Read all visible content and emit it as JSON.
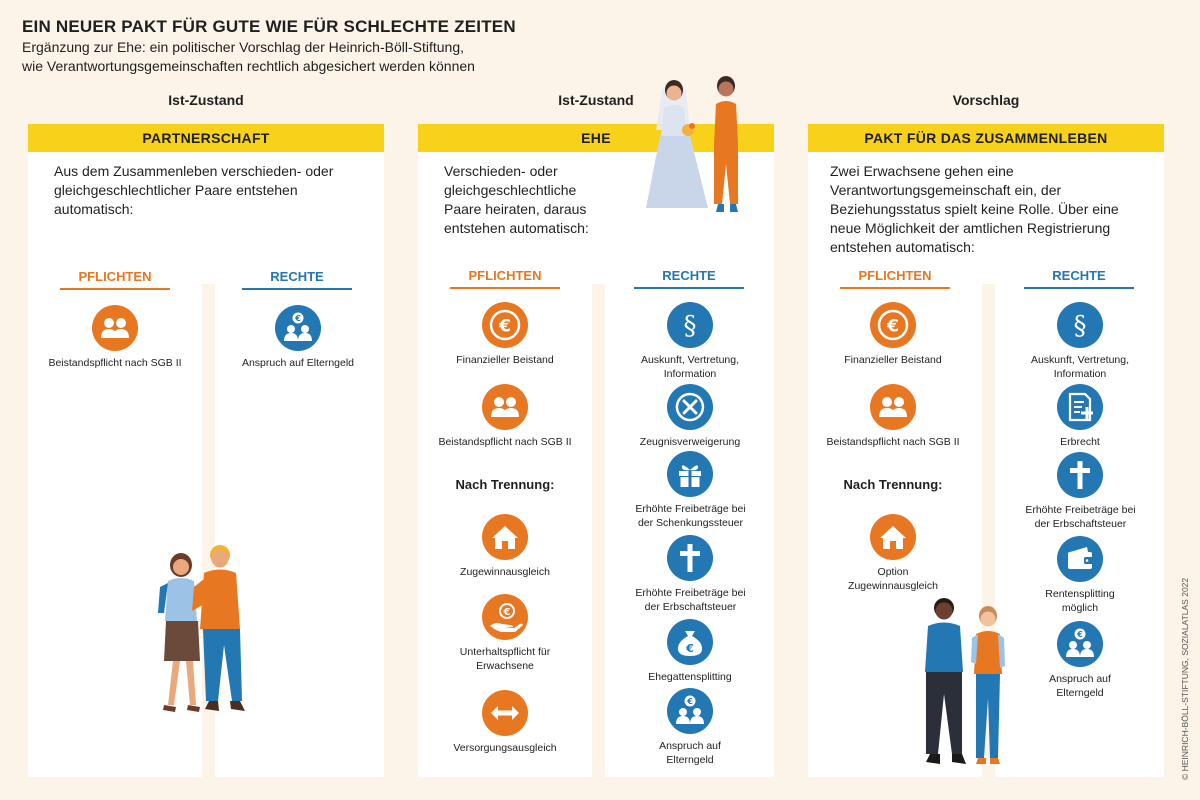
{
  "header": {
    "title": "EIN NEUER PAKT FÜR GUTE WIE FÜR SCHLECHTE ZEITEN",
    "subtitle_line1": "Ergänzung zur Ehe: ein politischer Vorschlag der Heinrich-Böll-Stiftung,",
    "subtitle_line2": "wie Verantwortungsgemeinschaften rechtlich abgesichert werden können"
  },
  "columns": [
    {
      "status": "Ist-Zustand",
      "banner": "PARTNERSCHAFT",
      "description": "Aus dem Zusammenleben verschieden- oder gleichgeschlechtlicher Paare entstehen automatisch:",
      "pflichten_label": "PFLICHTEN",
      "rechte_label": "RECHTE",
      "pflichten": [
        {
          "icon": "people-icon",
          "label": "Beistandspflicht nach SGB II"
        }
      ],
      "rechte": [
        {
          "icon": "family-euro-icon",
          "label": "Anspruch auf Elterngeld"
        }
      ]
    },
    {
      "status": "Ist-Zustand",
      "banner": "EHE",
      "description": "Verschieden- oder gleichgeschlechtliche Paare heiraten, daraus entstehen automatisch:",
      "pflichten_label": "PFLICHTEN",
      "rechte_label": "RECHTE",
      "nach_trennung": "Nach Trennung:",
      "pflichten": [
        {
          "icon": "euro-icon",
          "label": "Finanzieller Beistand"
        },
        {
          "icon": "people-icon",
          "label": "Beistandspflicht nach SGB II"
        },
        {
          "icon": "house-icon",
          "label": "Zugewinnausgleich"
        },
        {
          "icon": "hand-euro-icon",
          "label": "Unterhaltspflicht für Erwachsene"
        },
        {
          "icon": "double-arrow-icon",
          "label": "Versorgungsausgleich"
        }
      ],
      "rechte": [
        {
          "icon": "paragraph-icon",
          "label": "Auskunft, Vertretung, Information"
        },
        {
          "icon": "x-mark-icon",
          "label": "Zeugnisverweigerung"
        },
        {
          "icon": "gift-icon",
          "label": "Erhöhte Freibeträge bei der Schenkungssteuer"
        },
        {
          "icon": "cross-icon",
          "label": "Erhöhte Freibeträge bei der Erbschaftsteuer"
        },
        {
          "icon": "money-bag-icon",
          "label": "Ehegattensplitting"
        },
        {
          "icon": "family-euro-icon",
          "label": "Anspruch auf Elterngeld"
        }
      ]
    },
    {
      "status": "Vorschlag",
      "banner": "PAKT FÜR DAS ZUSAMMENLEBEN",
      "description": "Zwei Erwachsene gehen eine Verantwortungsgemeinschaft ein, der Beziehungsstatus spielt keine Rolle. Über eine neue Möglichkeit der amtlichen Registrierung entstehen automatisch:",
      "pflichten_label": "PFLICHTEN",
      "rechte_label": "RECHTE",
      "nach_trennung": "Nach Trennung:",
      "pflichten": [
        {
          "icon": "euro-icon",
          "label": "Finanzieller Beistand"
        },
        {
          "icon": "people-icon",
          "label": "Beistandspflicht nach SGB II"
        },
        {
          "icon": "house-icon",
          "label": "Option Zugewinnausgleich"
        }
      ],
      "rechte": [
        {
          "icon": "paragraph-icon",
          "label": "Auskunft, Vertretung, Information"
        },
        {
          "icon": "document-plus-icon",
          "label": "Erbrecht"
        },
        {
          "icon": "cross-icon",
          "label": "Erhöhte Freibeträge bei der Erbschaftsteuer"
        },
        {
          "icon": "wallet-icon",
          "label": "Rentensplitting möglich"
        },
        {
          "icon": "family-euro-icon",
          "label": "Anspruch auf Elterngeld"
        }
      ]
    }
  ],
  "credit": "© HEINRICH-BÖLL-STIFTUNG, SOZIALATLAS 2022",
  "colors": {
    "accent_yellow": "#f8d21a",
    "pflichten_orange": "#e87722",
    "rechte_blue": "#2377b3",
    "background": "#fdf4e9"
  }
}
